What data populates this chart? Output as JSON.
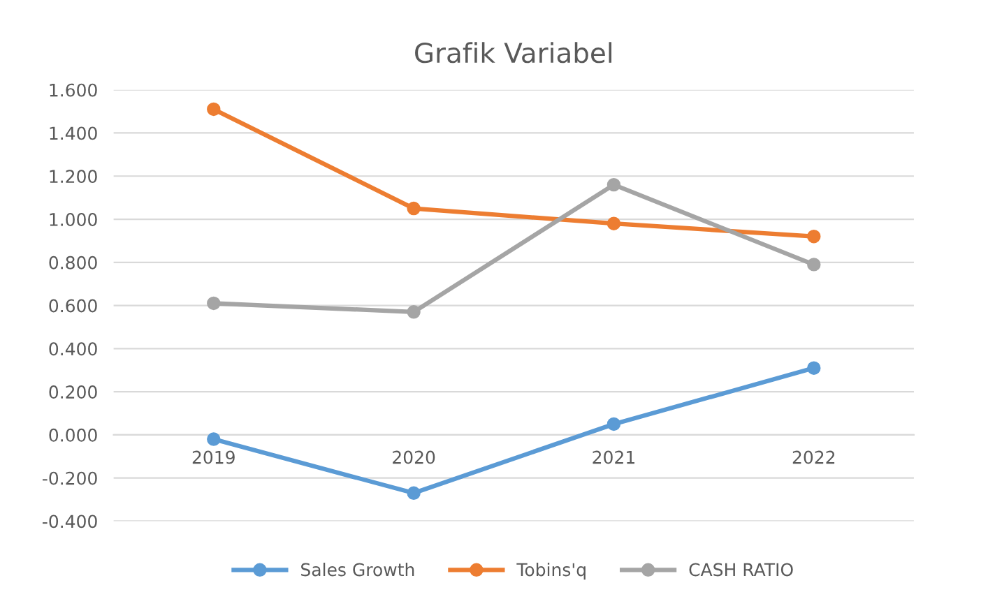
{
  "chart_data": {
    "type": "line",
    "title": "Grafik Variabel",
    "categories": [
      "2019",
      "2020",
      "2021",
      "2022"
    ],
    "series": [
      {
        "name": "Sales Growth",
        "color": "#5b9bd5",
        "values": [
          -0.02,
          -0.27,
          0.05,
          0.31
        ]
      },
      {
        "name": "Tobins'q",
        "color": "#ed7d31",
        "values": [
          1.51,
          1.05,
          0.98,
          0.92
        ]
      },
      {
        "name": "CASH RATIO",
        "color": "#a5a5a5",
        "values": [
          0.61,
          0.57,
          1.16,
          0.79
        ]
      }
    ],
    "ylim": [
      -0.4,
      1.6
    ],
    "yticks": [
      {
        "value": -0.4,
        "label": "-0.400"
      },
      {
        "value": -0.2,
        "label": "-0.200"
      },
      {
        "value": 0,
        "label": "0.000"
      },
      {
        "value": 0.2,
        "label": "0.200"
      },
      {
        "value": 0.4,
        "label": "0.400"
      },
      {
        "value": 0.6,
        "label": "0.600"
      },
      {
        "value": 0.8,
        "label": "0.800"
      },
      {
        "value": 1.0,
        "label": "1.000"
      },
      {
        "value": 1.2,
        "label": "1.200"
      },
      {
        "value": 1.4,
        "label": "1.400"
      },
      {
        "value": 1.6,
        "label": "1.600"
      }
    ],
    "grid": "y",
    "legend": "bottom",
    "marker": "circle",
    "line_style": "solid"
  }
}
